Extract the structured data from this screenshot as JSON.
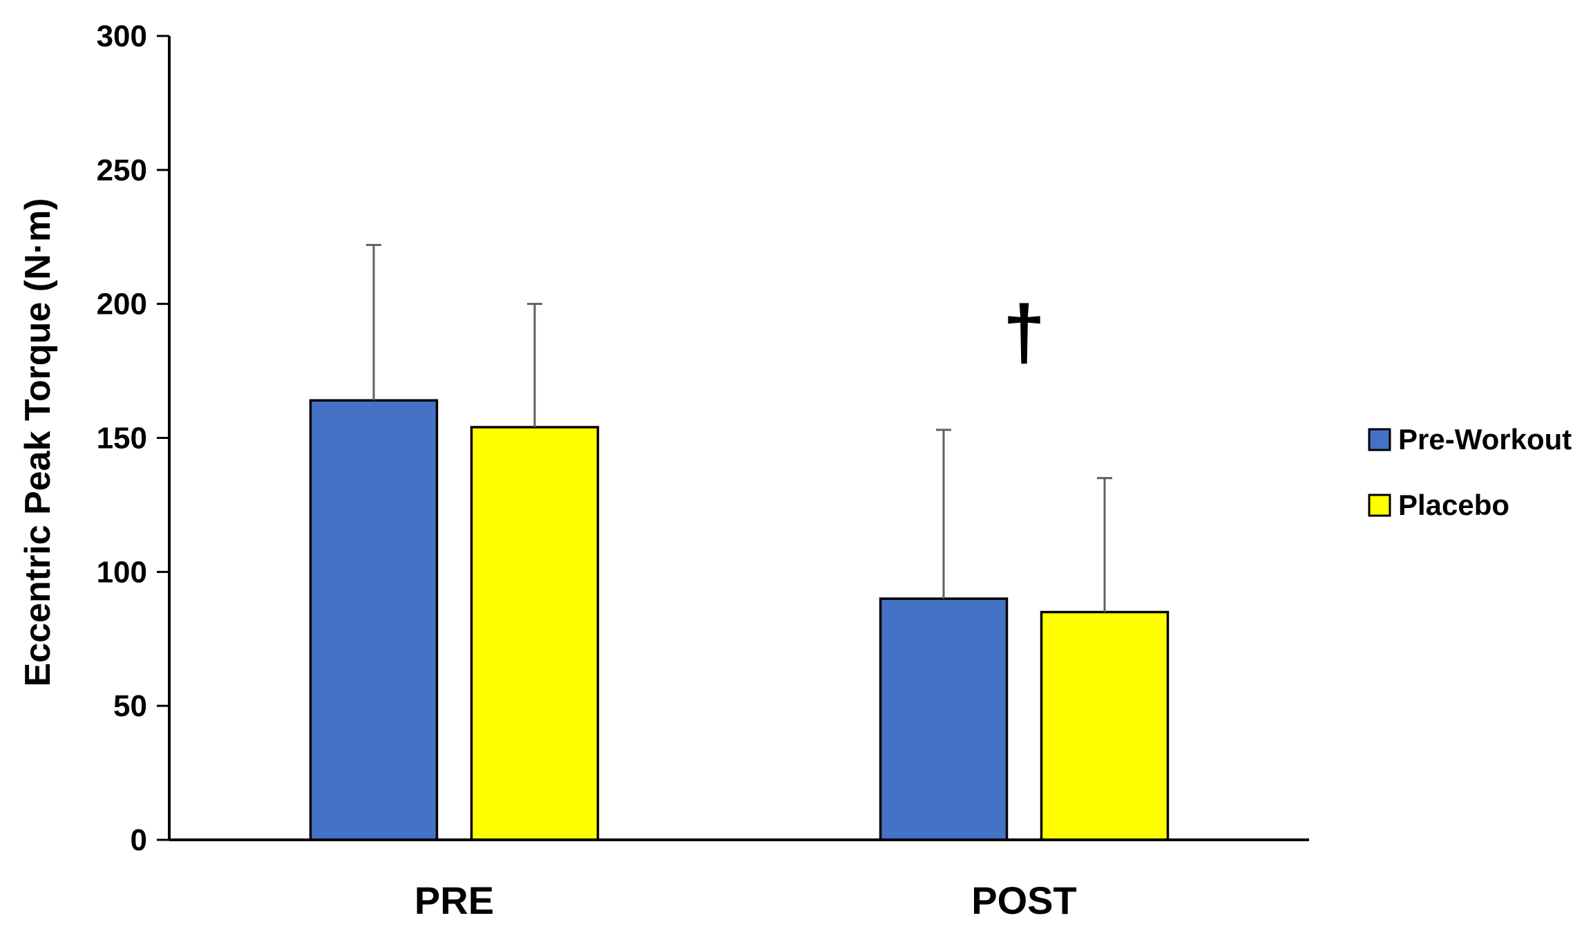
{
  "chart_data": {
    "type": "bar",
    "title": "",
    "xlabel": "",
    "ylabel": "Eccentric Peak Torque (N·m)",
    "ylim": [
      0,
      300
    ],
    "yticks": [
      0,
      50,
      100,
      150,
      200,
      250,
      300
    ],
    "categories": [
      "PRE",
      "POST"
    ],
    "series": [
      {
        "name": "Pre-Workout",
        "color": "#4472C4",
        "values": [
          164,
          90
        ],
        "error": [
          58,
          63
        ]
      },
      {
        "name": "Placebo",
        "color": "#FFFF00",
        "values": [
          154,
          85
        ],
        "error": [
          46,
          50
        ]
      }
    ],
    "annotations": [
      {
        "text": "†",
        "category": "POST",
        "y": 190
      }
    ],
    "legend": {
      "position": "right"
    },
    "grid": false,
    "error_bar_color": "#606060"
  }
}
